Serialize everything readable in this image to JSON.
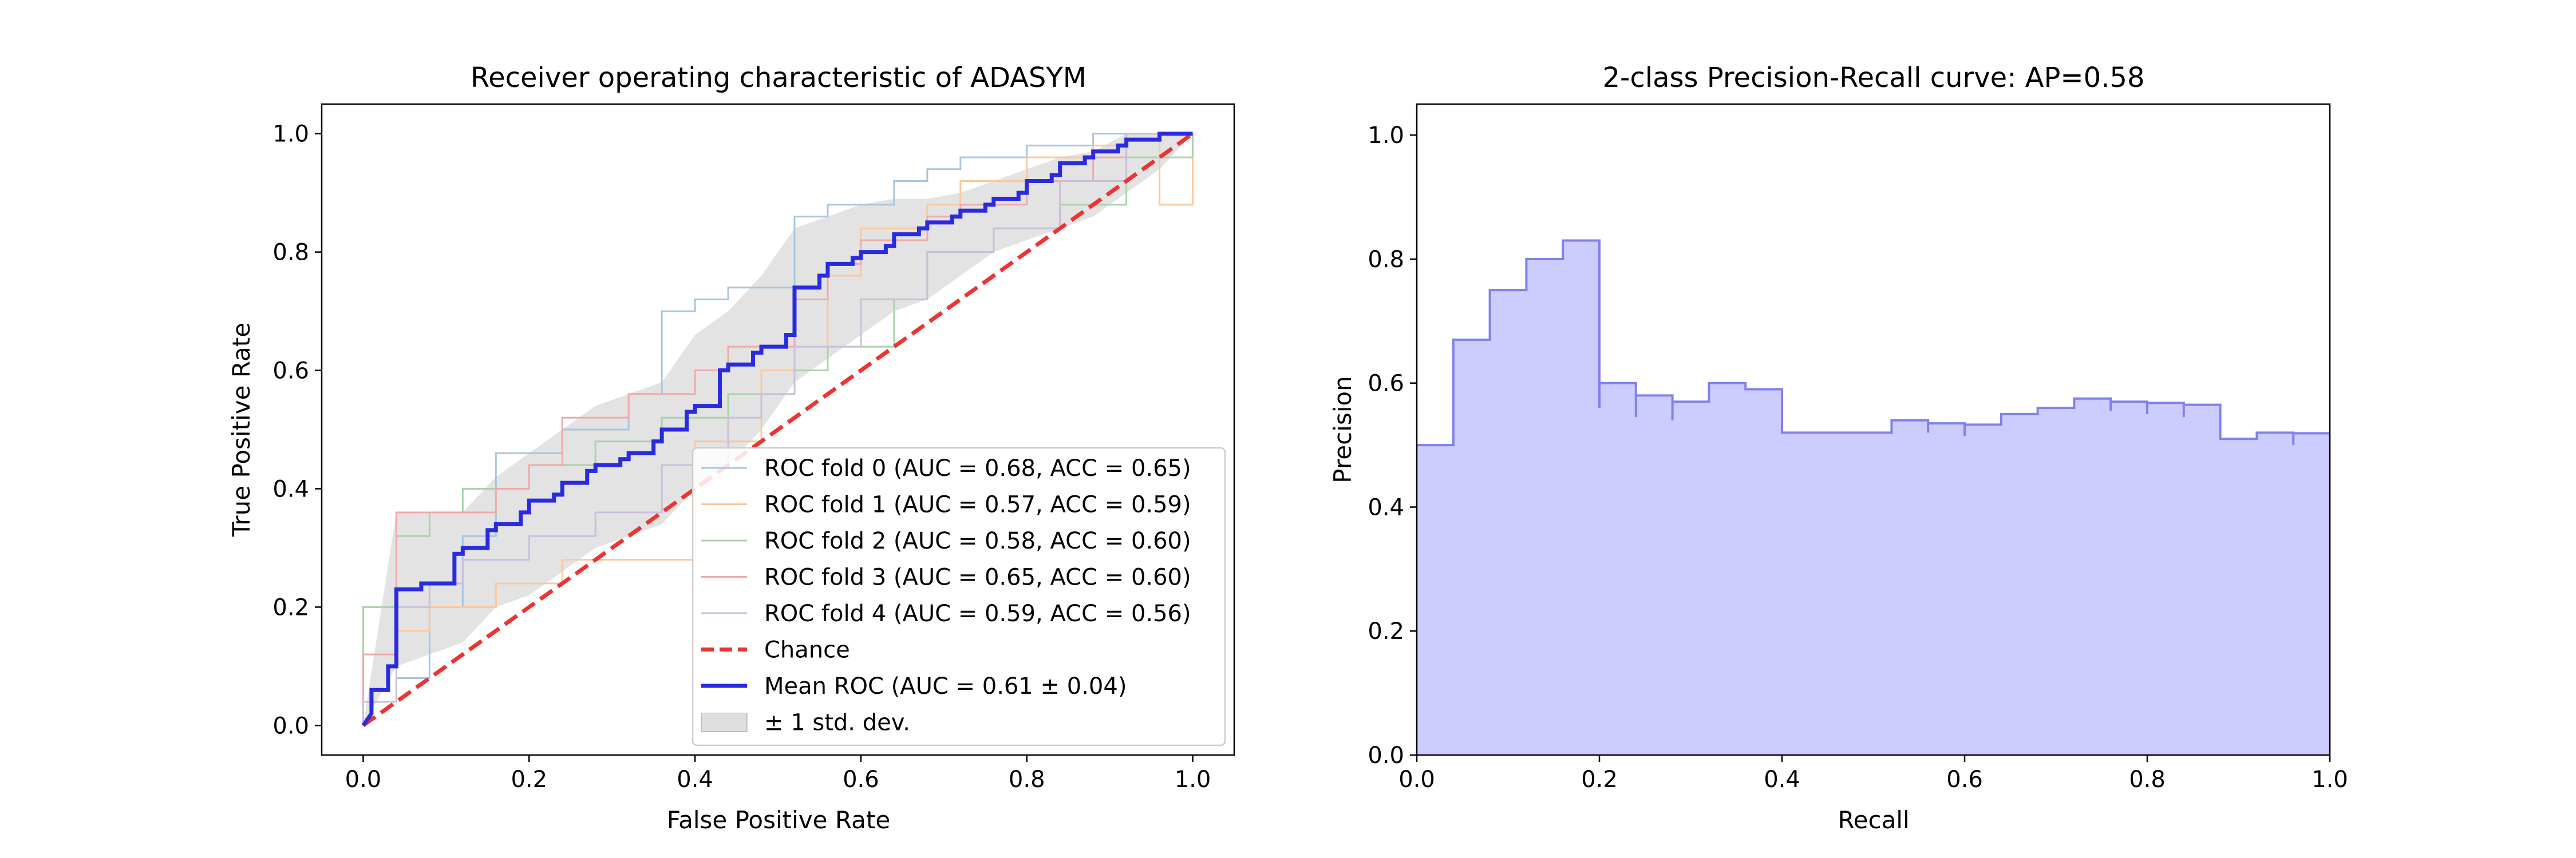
{
  "chart_data": [
    {
      "type": "line",
      "title": "Receiver operating characteristic of ADASYM",
      "xlabel": "False Positive Rate",
      "ylabel": "True Positive Rate",
      "xlim": [
        -0.05,
        1.05
      ],
      "ylim": [
        -0.05,
        1.05
      ],
      "xticks": [
        "0.0",
        "0.2",
        "0.4",
        "0.6",
        "0.8",
        "1.0"
      ],
      "yticks": [
        "0.0",
        "0.2",
        "0.4",
        "0.6",
        "0.8",
        "1.0"
      ],
      "legend_position": "lower-right",
      "series": [
        {
          "name": "ROC fold 0 (AUC = 0.68, ACC = 0.65)",
          "color": "#a6c6e3",
          "x": [
            0,
            0,
            0.04,
            0.04,
            0.08,
            0.08,
            0.12,
            0.12,
            0.16,
            0.16,
            0.24,
            0.24,
            0.32,
            0.32,
            0.36,
            0.36,
            0.4,
            0.4,
            0.44,
            0.44,
            0.52,
            0.52,
            0.56,
            0.56,
            0.64,
            0.64,
            0.68,
            0.68,
            0.72,
            0.72,
            0.76,
            0.76,
            0.8,
            0.8,
            0.88,
            0.88,
            0.92,
            0.92,
            1.0
          ],
          "y": [
            0,
            0.04,
            0.04,
            0.08,
            0.08,
            0.2,
            0.2,
            0.32,
            0.32,
            0.46,
            0.46,
            0.5,
            0.5,
            0.56,
            0.56,
            0.7,
            0.7,
            0.72,
            0.72,
            0.74,
            0.74,
            0.86,
            0.86,
            0.88,
            0.88,
            0.92,
            0.92,
            0.94,
            0.94,
            0.96,
            0.96,
            0.96,
            0.96,
            0.98,
            0.98,
            1.0,
            1.0,
            1.0,
            1.0
          ]
        },
        {
          "name": "ROC fold 1 (AUC = 0.57, ACC = 0.59)",
          "color": "#fdc79b",
          "x": [
            0,
            0,
            0.04,
            0.04,
            0.08,
            0.08,
            0.16,
            0.16,
            0.24,
            0.24,
            0.4,
            0.4,
            0.48,
            0.48,
            0.52,
            0.52,
            0.56,
            0.56,
            0.6,
            0.6,
            0.68,
            0.68,
            0.72,
            0.72,
            0.8,
            0.8,
            0.88,
            0.88,
            0.92,
            0.92,
            0.96,
            0.96,
            1.0,
            1.0
          ],
          "y": [
            0,
            0.12,
            0.12,
            0.16,
            0.16,
            0.2,
            0.2,
            0.24,
            0.24,
            0.28,
            0.28,
            0.48,
            0.48,
            0.6,
            0.6,
            0.64,
            0.64,
            0.76,
            0.76,
            0.84,
            0.84,
            0.88,
            0.88,
            0.92,
            0.92,
            0.96,
            0.96,
            0.98,
            0.98,
            1.0,
            1.0,
            0.88,
            0.88,
            1.0
          ]
        },
        {
          "name": "ROC fold 2 (AUC = 0.58, ACC = 0.60)",
          "color": "#a9d3a9",
          "x": [
            0,
            0,
            0.04,
            0.04,
            0.08,
            0.08,
            0.12,
            0.12,
            0.2,
            0.2,
            0.28,
            0.28,
            0.36,
            0.36,
            0.44,
            0.44,
            0.52,
            0.52,
            0.56,
            0.56,
            0.64,
            0.64,
            0.68,
            0.68,
            0.76,
            0.76,
            0.84,
            0.84,
            0.92,
            0.92,
            1.0,
            1.0
          ],
          "y": [
            0,
            0.2,
            0.2,
            0.32,
            0.32,
            0.36,
            0.36,
            0.4,
            0.4,
            0.44,
            0.44,
            0.48,
            0.48,
            0.52,
            0.52,
            0.56,
            0.56,
            0.6,
            0.6,
            0.64,
            0.64,
            0.72,
            0.72,
            0.8,
            0.8,
            0.84,
            0.84,
            0.88,
            0.88,
            0.96,
            0.96,
            1.0
          ]
        },
        {
          "name": "ROC fold 3 (AUC = 0.65, ACC = 0.60)",
          "color": "#f2a9a9",
          "x": [
            0,
            0,
            0.04,
            0.04,
            0.08,
            0.08,
            0.16,
            0.16,
            0.2,
            0.2,
            0.24,
            0.24,
            0.32,
            0.32,
            0.4,
            0.4,
            0.44,
            0.44,
            0.52,
            0.52,
            0.56,
            0.56,
            0.6,
            0.6,
            0.68,
            0.68,
            0.72,
            0.72,
            0.8,
            0.8,
            0.88,
            0.88,
            0.92,
            0.92,
            1.0,
            1.0
          ],
          "y": [
            0,
            0.12,
            0.12,
            0.36,
            0.36,
            0.36,
            0.36,
            0.4,
            0.4,
            0.44,
            0.44,
            0.52,
            0.52,
            0.56,
            0.56,
            0.6,
            0.6,
            0.64,
            0.64,
            0.72,
            0.72,
            0.78,
            0.78,
            0.82,
            0.82,
            0.86,
            0.86,
            0.88,
            0.88,
            0.92,
            0.92,
            0.96,
            0.96,
            1.0,
            1.0,
            1.0
          ]
        },
        {
          "name": "ROC fold 4 (AUC = 0.59, ACC = 0.56)",
          "color": "#cbbedc",
          "x": [
            0,
            0,
            0.04,
            0.04,
            0.08,
            0.08,
            0.12,
            0.12,
            0.2,
            0.2,
            0.28,
            0.28,
            0.36,
            0.36,
            0.44,
            0.44,
            0.48,
            0.48,
            0.52,
            0.52,
            0.6,
            0.6,
            0.68,
            0.68,
            0.76,
            0.76,
            0.84,
            0.84,
            0.92,
            0.92,
            1.0
          ],
          "y": [
            0,
            0.04,
            0.04,
            0.2,
            0.2,
            0.24,
            0.24,
            0.28,
            0.28,
            0.32,
            0.32,
            0.36,
            0.36,
            0.44,
            0.44,
            0.52,
            0.52,
            0.56,
            0.56,
            0.64,
            0.64,
            0.72,
            0.72,
            0.8,
            0.8,
            0.84,
            0.84,
            0.92,
            0.92,
            1.0,
            1.0
          ]
        },
        {
          "name": "Chance",
          "color": "#ee3333",
          "dashed": true,
          "x": [
            0,
            1
          ],
          "y": [
            0,
            1
          ]
        },
        {
          "name": "Mean ROC (AUC = 0.61 ± 0.04)",
          "color": "#2a2ae0",
          "x": [
            0,
            0.01,
            0.01,
            0.03,
            0.03,
            0.04,
            0.04,
            0.07,
            0.07,
            0.08,
            0.08,
            0.11,
            0.11,
            0.12,
            0.12,
            0.15,
            0.15,
            0.16,
            0.16,
            0.19,
            0.19,
            0.2,
            0.2,
            0.23,
            0.23,
            0.24,
            0.24,
            0.27,
            0.27,
            0.28,
            0.28,
            0.31,
            0.31,
            0.32,
            0.32,
            0.35,
            0.35,
            0.36,
            0.36,
            0.39,
            0.39,
            0.4,
            0.4,
            0.43,
            0.43,
            0.44,
            0.44,
            0.47,
            0.47,
            0.48,
            0.48,
            0.51,
            0.51,
            0.52,
            0.52,
            0.55,
            0.55,
            0.56,
            0.56,
            0.59,
            0.59,
            0.6,
            0.6,
            0.63,
            0.63,
            0.64,
            0.64,
            0.67,
            0.67,
            0.68,
            0.68,
            0.71,
            0.71,
            0.72,
            0.72,
            0.75,
            0.75,
            0.76,
            0.76,
            0.79,
            0.79,
            0.8,
            0.8,
            0.83,
            0.83,
            0.84,
            0.84,
            0.87,
            0.87,
            0.88,
            0.88,
            0.91,
            0.91,
            0.92,
            0.92,
            0.95,
            0.95,
            0.96,
            0.96,
            0.99,
            0.99,
            1.0
          ],
          "y": [
            0,
            0.02,
            0.06,
            0.06,
            0.1,
            0.1,
            0.23,
            0.23,
            0.24,
            0.24,
            0.24,
            0.24,
            0.29,
            0.29,
            0.3,
            0.3,
            0.33,
            0.33,
            0.34,
            0.34,
            0.36,
            0.36,
            0.38,
            0.38,
            0.39,
            0.39,
            0.41,
            0.41,
            0.43,
            0.43,
            0.44,
            0.44,
            0.45,
            0.45,
            0.46,
            0.46,
            0.48,
            0.48,
            0.5,
            0.5,
            0.53,
            0.53,
            0.54,
            0.54,
            0.6,
            0.6,
            0.61,
            0.61,
            0.63,
            0.63,
            0.64,
            0.64,
            0.66,
            0.66,
            0.74,
            0.74,
            0.76,
            0.76,
            0.78,
            0.78,
            0.79,
            0.79,
            0.8,
            0.8,
            0.81,
            0.81,
            0.83,
            0.83,
            0.84,
            0.84,
            0.85,
            0.85,
            0.86,
            0.86,
            0.87,
            0.87,
            0.88,
            0.88,
            0.89,
            0.89,
            0.9,
            0.9,
            0.92,
            0.92,
            0.93,
            0.93,
            0.95,
            0.95,
            0.96,
            0.96,
            0.97,
            0.97,
            0.98,
            0.98,
            0.99,
            0.99,
            0.99,
            0.99,
            1.0,
            1.0,
            1.0,
            1.0
          ]
        },
        {
          "name": "± 1 std. dev.",
          "color": "#c8c8c8",
          "band": true,
          "x": [
            0,
            0.04,
            0.08,
            0.12,
            0.16,
            0.2,
            0.24,
            0.28,
            0.32,
            0.36,
            0.4,
            0.44,
            0.48,
            0.52,
            0.56,
            0.6,
            0.64,
            0.68,
            0.72,
            0.76,
            0.8,
            0.84,
            0.88,
            0.92,
            0.96,
            1.0
          ],
          "upper": [
            0,
            0.36,
            0.36,
            0.36,
            0.42,
            0.46,
            0.5,
            0.54,
            0.56,
            0.58,
            0.66,
            0.7,
            0.76,
            0.84,
            0.86,
            0.88,
            0.89,
            0.89,
            0.9,
            0.92,
            0.94,
            0.96,
            0.97,
            1.0,
            1.0,
            1.0
          ],
          "lower": [
            0,
            0.1,
            0.12,
            0.14,
            0.2,
            0.22,
            0.26,
            0.3,
            0.32,
            0.34,
            0.4,
            0.44,
            0.5,
            0.58,
            0.62,
            0.66,
            0.7,
            0.72,
            0.76,
            0.8,
            0.82,
            0.84,
            0.86,
            0.9,
            0.94,
            1.0
          ]
        }
      ]
    },
    {
      "type": "area",
      "title": "2-class Precision-Recall curve: AP=0.58",
      "xlabel": "Recall",
      "ylabel": "Precision",
      "xlim": [
        0,
        1
      ],
      "ylim": [
        0,
        1.05
      ],
      "xticks": [
        "0.0",
        "0.2",
        "0.4",
        "0.6",
        "0.8",
        "1.0"
      ],
      "yticks": [
        "0.0",
        "0.2",
        "0.4",
        "0.6",
        "0.8",
        "1.0"
      ],
      "fill_color": "#ccccff",
      "line_color": "#8080ee",
      "steps": {
        "recall": [
          0.0,
          0.04,
          0.08,
          0.12,
          0.16,
          0.2,
          0.24,
          0.28,
          0.32,
          0.36,
          0.4,
          0.52,
          0.56,
          0.6,
          0.64,
          0.68,
          0.72,
          0.76,
          0.8,
          0.84,
          0.88,
          0.92,
          0.96,
          1.0
        ],
        "precision": [
          0.5,
          0.67,
          0.75,
          0.8,
          0.83,
          0.6,
          0.58,
          0.57,
          0.6,
          0.59,
          0.52,
          0.54,
          0.535,
          0.533,
          0.55,
          0.56,
          0.575,
          0.57,
          0.568,
          0.565,
          0.51,
          0.52,
          0.519
        ]
      },
      "dips": [
        {
          "recall": 0.2,
          "precision": 0.56
        },
        {
          "recall": 0.24,
          "precision": 0.545
        },
        {
          "recall": 0.28,
          "precision": 0.54
        },
        {
          "recall": 0.56,
          "precision": 0.52
        },
        {
          "recall": 0.6,
          "precision": 0.515
        },
        {
          "recall": 0.76,
          "precision": 0.555
        },
        {
          "recall": 0.8,
          "precision": 0.55
        },
        {
          "recall": 0.84,
          "precision": 0.545
        },
        {
          "recall": 0.96,
          "precision": 0.5
        }
      ]
    }
  ]
}
